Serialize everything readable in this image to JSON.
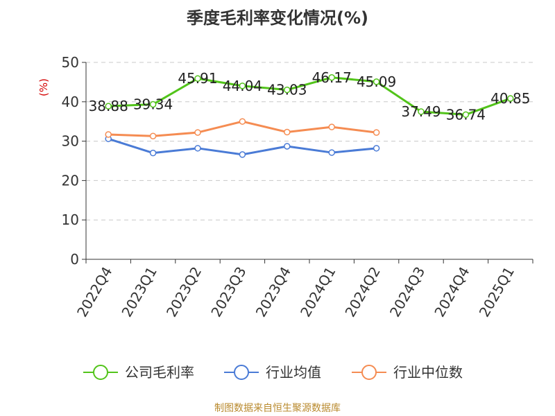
{
  "chart_data": {
    "type": "line",
    "title": "季度毛利率变化情况(%)",
    "ylabel": "(%)",
    "ylim": [
      0,
      50
    ],
    "yticks": [
      0,
      10,
      20,
      30,
      40,
      50
    ],
    "grid": true,
    "legend_position": "bottom",
    "categories": [
      "2022Q4",
      "2023Q1",
      "2023Q2",
      "2023Q3",
      "2023Q4",
      "2024Q1",
      "2024Q2",
      "2024Q3",
      "2024Q4",
      "2025Q1"
    ],
    "series": [
      {
        "name": "公司毛利率",
        "color": "#52c41a",
        "show_labels": true,
        "values": [
          38.88,
          39.34,
          45.91,
          44.04,
          43.03,
          46.17,
          45.09,
          37.49,
          36.74,
          40.85
        ],
        "labels": [
          "38.88",
          "39.34",
          "45.91",
          "44.04",
          "43.03",
          "46.17",
          "45.09",
          "37.49",
          "36.74",
          "40.85"
        ]
      },
      {
        "name": "行业均值",
        "color": "#4a7bd6",
        "show_labels": false,
        "values": [
          30.6,
          27.0,
          28.2,
          26.6,
          28.7,
          27.1,
          28.2,
          null,
          null,
          null
        ]
      },
      {
        "name": "行业中位数",
        "color": "#f58c52",
        "show_labels": false,
        "values": [
          31.7,
          31.3,
          32.2,
          35.0,
          32.3,
          33.6,
          32.2,
          null,
          null,
          null
        ]
      }
    ]
  },
  "source": "制图数据来自恒生聚源数据库"
}
